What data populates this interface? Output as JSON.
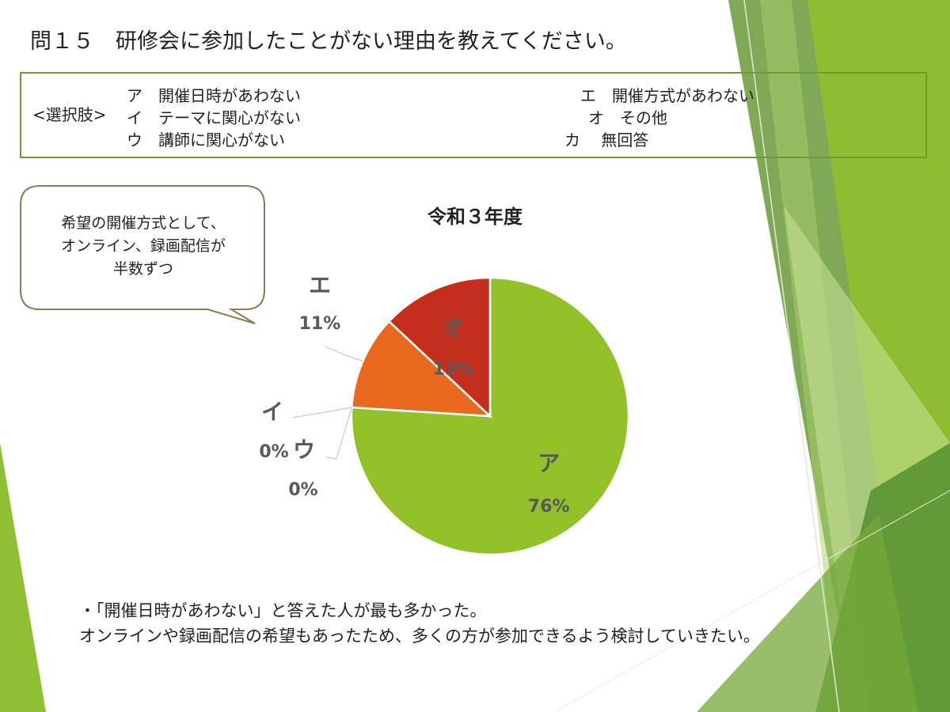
{
  "title": "問１５　研修会に参加したことがない理由を教えてください。",
  "choices": {
    "label": "<選択肢>",
    "items": [
      {
        "key": "ア",
        "text": "開催日時があわない"
      },
      {
        "key": "イ",
        "text": "テーマに関心がない"
      },
      {
        "key": "ウ",
        "text": "講師に関心がない"
      },
      {
        "key": "エ",
        "text": "開催方式があわない"
      },
      {
        "key": "オ",
        "text": "その他"
      },
      {
        "key": "カ",
        "text": "無回答"
      }
    ]
  },
  "callout": {
    "lines": [
      "希望の開催方式として、",
      "オンライン、録画配信が",
      "半数ずつ"
    ]
  },
  "summary": {
    "line1": "・「開催日時があわない」と答えた人が最も多かった。",
    "line2": "オンラインや録画配信の希望もあったため、多くの方が参加できるよう検討していきたい。"
  },
  "colors": {
    "ア": "#92c12a",
    "イ": "#7aa83a",
    "ウ": "#5e8f2a",
    "エ": "#e8691e",
    "オ": "#c42e1c",
    "label_text": "#595959",
    "box_border": "#6f9a2f"
  },
  "chart_data": {
    "type": "pie",
    "title": "令和３年度",
    "categories": [
      "ア",
      "イ",
      "ウ",
      "エ",
      "オ"
    ],
    "values": [
      76,
      0,
      0,
      11,
      13
    ],
    "value_labels": [
      "76%",
      "0%",
      "0%",
      "11%",
      "13%"
    ],
    "start": "12 o'clock",
    "direction": "clockwise"
  }
}
